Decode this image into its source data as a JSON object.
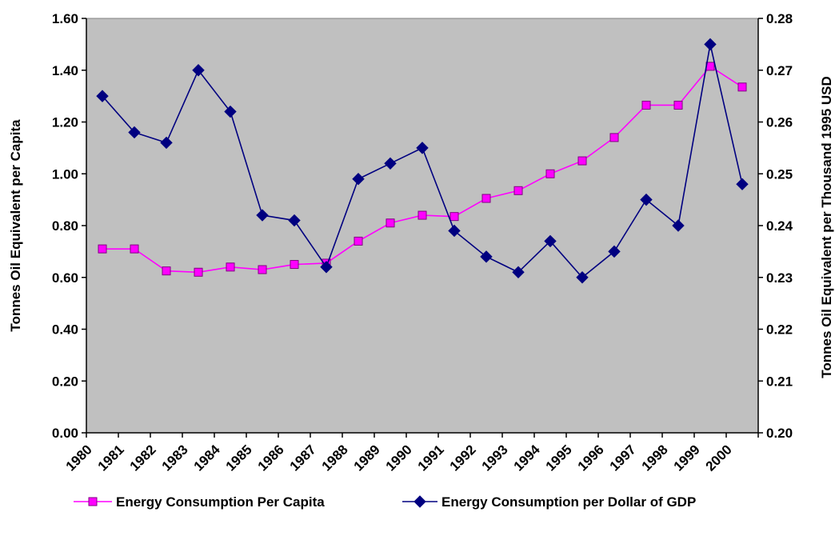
{
  "chart_data": {
    "type": "line",
    "title": "",
    "x_categories": [
      "1980",
      "1981",
      "1982",
      "1983",
      "1984",
      "1985",
      "1986",
      "1987",
      "1988",
      "1989",
      "1990",
      "1991",
      "1992",
      "1993",
      "1994",
      "1995",
      "1996",
      "1997",
      "1998",
      "1999",
      "2000"
    ],
    "y_left": {
      "label": "Tonnes Oil Equivalent per Capita",
      "range": [
        0,
        1.6
      ],
      "ticks": [
        "0.00",
        "0.20",
        "0.40",
        "0.60",
        "0.80",
        "1.00",
        "1.20",
        "1.40",
        "1.60"
      ]
    },
    "y_right": {
      "label": "Tonnes Oil Equivalent per Thousand 1995 USD",
      "range": [
        0.2,
        0.28
      ],
      "ticks": [
        "0.20",
        "0.21",
        "0.22",
        "0.23",
        "0.24",
        "0.25",
        "0.26",
        "0.27",
        "0.28"
      ]
    },
    "series": [
      {
        "name": "Energy Consumption Per Capita",
        "axis": "left",
        "color": "#ff00ff",
        "marker": "square",
        "values": [
          0.71,
          0.71,
          0.625,
          0.62,
          0.64,
          0.63,
          0.65,
          0.655,
          0.74,
          0.81,
          0.84,
          0.835,
          0.905,
          0.935,
          1.0,
          1.05,
          1.14,
          1.265,
          1.265,
          1.415,
          1.335
        ]
      },
      {
        "name": "Energy Consumption per Dollar of GDP",
        "axis": "right",
        "color": "#000080",
        "marker": "diamond",
        "values": [
          0.265,
          0.258,
          0.256,
          0.27,
          0.262,
          0.242,
          0.241,
          0.232,
          0.249,
          0.252,
          0.255,
          0.239,
          0.234,
          0.231,
          0.237,
          0.23,
          0.235,
          0.245,
          0.24,
          0.275,
          0.248
        ]
      }
    ],
    "plot_background": "#c0c0c0",
    "grid": false,
    "legend_position": "bottom"
  }
}
